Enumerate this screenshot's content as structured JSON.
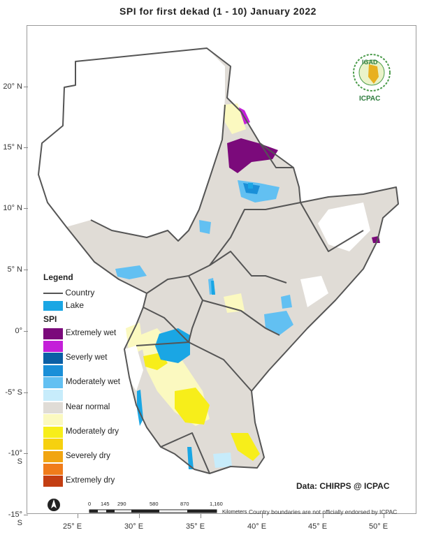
{
  "title": "SPI   for   first  dekad (1 - 10)  January 2022",
  "latitude_labels": [
    "20° N",
    "15° N",
    "10° N",
    "5° N",
    "0°",
    "-5° S",
    "-10° S",
    "-15° S"
  ],
  "longitude_labels": [
    "25° E",
    "30° E",
    "35° E",
    "40° E",
    "45° E",
    "50° E"
  ],
  "legend": {
    "title": "Legend",
    "country_label": "Country",
    "lake_label": "Lake",
    "spi_title": "SPI",
    "spi_classes": [
      {
        "label": "Extremely wet",
        "color": "#7b0a7b"
      },
      {
        "label": "",
        "color": "#c41fd9"
      },
      {
        "label": "Severly wet",
        "color": "#0b5fa5"
      },
      {
        "label": "",
        "color": "#1a8fd8"
      },
      {
        "label": "Moderately wet",
        "color": "#62c0f2"
      },
      {
        "label": "",
        "color": "#c7ecfb"
      },
      {
        "label": "Near normal",
        "color": "#e0dcd6"
      },
      {
        "label": "",
        "color": "#fbf9c0"
      },
      {
        "label": "Moderately dry",
        "color": "#f7ee1a"
      },
      {
        "label": "",
        "color": "#f6d10f"
      },
      {
        "label": "Severely dry",
        "color": "#f1a511"
      },
      {
        "label": "",
        "color": "#f07c1a"
      },
      {
        "label": "Extremely dry",
        "color": "#c33e12"
      }
    ],
    "lake_color": "#1aa6e4",
    "country_line_color": "#555555"
  },
  "logo": {
    "top_text": "IGAD",
    "bottom_text": "ICPAC"
  },
  "credit": "Data: CHIRPS @ ICPAC",
  "scale_bar": {
    "labels": [
      "0",
      "145",
      "290",
      "580",
      "870",
      "1,160"
    ],
    "units": "Kilometers"
  },
  "disclaimer": "Country boundaries are not officially endorsed by ICPAC",
  "north_arrow": "north-arrow-icon"
}
